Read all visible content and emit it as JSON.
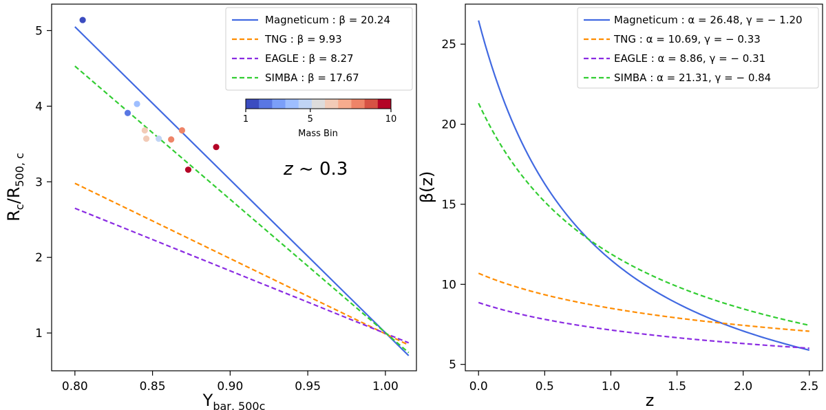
{
  "chart_data": [
    {
      "type": "line+scatter",
      "xlabel_main": "Y",
      "xlabel_sub": "bar, 500c",
      "ylabel_main": "R",
      "ylabel_sub1": "c",
      "ylabel_mid": "/R",
      "ylabel_sub2": "500, c",
      "xlim": [
        0.785,
        1.02
      ],
      "ylim": [
        0.5,
        5.35
      ],
      "xticks": [
        0.8,
        0.85,
        0.9,
        0.95,
        1.0
      ],
      "xtick_labels": [
        "0.80",
        "0.85",
        "0.90",
        "0.95",
        "1.00"
      ],
      "yticks": [
        1,
        2,
        3,
        4,
        5
      ],
      "ytick_labels": [
        "1",
        "2",
        "3",
        "4",
        "5"
      ],
      "annotation_main": "z",
      "annotation_rest": " ~ 0.3",
      "legend_position": "top-right",
      "series": [
        {
          "name": "Magneticum",
          "label": "Magneticum : β = 20.24",
          "color": "#4169e1",
          "dash": "solid",
          "x": [
            0.8,
            1.015
          ],
          "y": [
            5.05,
            0.7
          ]
        },
        {
          "name": "TNG",
          "label": "TNG : β = 9.93",
          "color": "#ff8c00",
          "dash": "dashed",
          "x": [
            0.8,
            1.015
          ],
          "y": [
            2.98,
            0.84
          ]
        },
        {
          "name": "EAGLE",
          "label": "EAGLE : β = 8.27",
          "color": "#8a2be2",
          "dash": "dashed",
          "x": [
            0.8,
            1.015
          ],
          "y": [
            2.65,
            0.87
          ]
        },
        {
          "name": "SIMBA",
          "label": "SIMBA : β = 17.67",
          "color": "#32cd32",
          "dash": "dashed",
          "x": [
            0.8,
            1.015
          ],
          "y": [
            4.53,
            0.74
          ]
        }
      ],
      "points": [
        {
          "x": 0.805,
          "y": 5.14,
          "bin": 1
        },
        {
          "x": 0.834,
          "y": 3.91,
          "bin": 2
        },
        {
          "x": 0.84,
          "y": 4.03,
          "bin": 4
        },
        {
          "x": 0.854,
          "y": 3.57,
          "bin": 5
        },
        {
          "x": 0.845,
          "y": 3.68,
          "bin": 6
        },
        {
          "x": 0.846,
          "y": 3.57,
          "bin": 6
        },
        {
          "x": 0.862,
          "y": 3.56,
          "bin": 8
        },
        {
          "x": 0.869,
          "y": 3.68,
          "bin": 8
        },
        {
          "x": 0.891,
          "y": 3.46,
          "bin": 10
        },
        {
          "x": 0.873,
          "y": 3.16,
          "bin": 10
        }
      ],
      "colorbar": {
        "label": "Mass Bin",
        "min": 1,
        "max": 10,
        "tick_values": [
          1,
          5,
          10
        ],
        "tick_labels": [
          "1",
          "5",
          "10"
        ],
        "colors": [
          "#3b4cc0",
          "#5977e3",
          "#7b9ff9",
          "#9ebeff",
          "#c0d4f5",
          "#dddcdc",
          "#f2cbb7",
          "#f7ac8e",
          "#ee8468",
          "#d65244",
          "#b40426"
        ]
      }
    },
    {
      "type": "line",
      "xlabel": "z",
      "ylabel": "β(z)",
      "xlim": [
        -0.1,
        2.6
      ],
      "ylim": [
        4.6,
        27.5
      ],
      "xticks": [
        0.0,
        0.5,
        1.0,
        1.5,
        2.0,
        2.5
      ],
      "xtick_labels": [
        "0.0",
        "0.5",
        "1.0",
        "1.5",
        "2.0",
        "2.5"
      ],
      "yticks": [
        5,
        10,
        15,
        20,
        25
      ],
      "ytick_labels": [
        "5",
        "10",
        "15",
        "20",
        "25"
      ],
      "legend_position": "top-right",
      "model": "beta(z) = alpha * (1 + z)^gamma",
      "series": [
        {
          "name": "Magneticum",
          "label": "Magneticum : α = 26.48, γ = − 1.20",
          "color": "#4169e1",
          "dash": "solid",
          "alpha": 26.48,
          "gamma": -1.2
        },
        {
          "name": "TNG",
          "label": "TNG : α = 10.69, γ = − 0.33",
          "color": "#ff8c00",
          "dash": "dashed",
          "alpha": 10.69,
          "gamma": -0.33
        },
        {
          "name": "EAGLE",
          "label": "EAGLE : α = 8.86, γ = − 0.31",
          "color": "#8a2be2",
          "dash": "dashed",
          "alpha": 8.86,
          "gamma": -0.31
        },
        {
          "name": "SIMBA",
          "label": "SIMBA : α = 21.31, γ = − 0.84",
          "color": "#32cd32",
          "dash": "dashed",
          "alpha": 21.31,
          "gamma": -0.84
        }
      ]
    }
  ]
}
